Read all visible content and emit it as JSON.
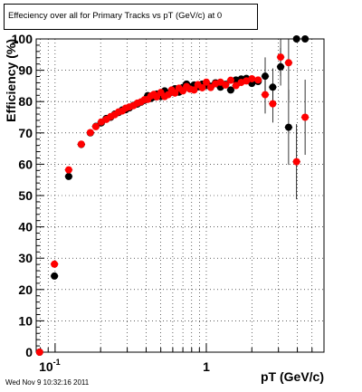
{
  "title": "Effeciency over all for Primary Tracks vs pT (GeV/c) at 0",
  "timestamp": "Wed Nov  9 10:32:16 2011",
  "chart_data": {
    "type": "scatter",
    "title": "Effeciency over all for Primary Tracks vs pT (GeV/c) at 0",
    "xlabel": "pT (GeV/c)",
    "ylabel": "Efficiency (%)",
    "x_scale": "log",
    "xlim": [
      0.075,
      6.0
    ],
    "ylim": [
      0,
      100
    ],
    "x_tick_labels": [
      "10^-1",
      "1"
    ],
    "y_ticks": [
      0,
      10,
      20,
      30,
      40,
      50,
      60,
      70,
      80,
      90,
      100
    ],
    "grid": true,
    "colors": {
      "black_series": "#000000",
      "red_series": "#ff0000"
    },
    "series": [
      {
        "color": "#000000",
        "x": [
          0.079,
          0.099,
          0.123,
          0.149,
          0.171,
          0.186,
          0.202,
          0.218,
          0.233,
          0.248,
          0.263,
          0.278,
          0.293,
          0.31,
          0.33,
          0.35,
          0.37,
          0.39,
          0.41,
          0.43,
          0.45,
          0.47,
          0.5,
          0.53,
          0.56,
          0.59,
          0.62,
          0.66,
          0.7,
          0.74,
          0.78,
          0.83,
          0.88,
          0.94,
          1.0,
          1.07,
          1.15,
          1.24,
          1.34,
          1.45,
          1.57,
          1.7,
          1.84,
          2.0,
          2.2,
          2.45,
          2.75,
          3.1,
          3.5,
          3.95,
          4.5
        ],
        "y": [
          0,
          24.3,
          56.1,
          66.3,
          70.0,
          72.1,
          73.2,
          74.6,
          75.0,
          76.0,
          76.5,
          77.3,
          77.4,
          78.0,
          78.8,
          79.2,
          79.8,
          80.4,
          81.9,
          81.0,
          81.5,
          82.4,
          81.6,
          83.4,
          82.6,
          83.0,
          84.1,
          83.0,
          84.5,
          85.6,
          84.7,
          85.3,
          84.7,
          85.6,
          85.1,
          84.9,
          86.0,
          84.6,
          85.5,
          83.7,
          86.9,
          87.2,
          87.4,
          85.8,
          86.4,
          88.1,
          84.6,
          91.1,
          71.8,
          100,
          100
        ]
      },
      {
        "color": "#ff0000",
        "x": [
          0.079,
          0.099,
          0.123,
          0.149,
          0.171,
          0.186,
          0.202,
          0.218,
          0.233,
          0.248,
          0.263,
          0.278,
          0.293,
          0.31,
          0.33,
          0.35,
          0.37,
          0.39,
          0.41,
          0.43,
          0.45,
          0.47,
          0.5,
          0.53,
          0.56,
          0.59,
          0.62,
          0.66,
          0.7,
          0.74,
          0.78,
          0.83,
          0.88,
          0.94,
          1.0,
          1.07,
          1.15,
          1.24,
          1.34,
          1.45,
          1.57,
          1.7,
          1.84,
          2.0,
          2.2,
          2.45,
          2.75,
          3.1,
          3.5,
          3.95,
          4.5
        ],
        "y": [
          0,
          28.1,
          58.2,
          66.4,
          70.1,
          72.0,
          73.5,
          74.3,
          75.2,
          75.8,
          76.7,
          77.0,
          77.9,
          78.3,
          78.7,
          79.5,
          79.9,
          80.6,
          80.7,
          81.8,
          82.3,
          81.5,
          82.9,
          81.6,
          82.2,
          83.7,
          82.7,
          84.3,
          83.4,
          84.8,
          84.0,
          83.7,
          85.4,
          84.4,
          86.2,
          84.5,
          85.7,
          86.2,
          85.3,
          86.8,
          85.1,
          86.1,
          86.6,
          87.3,
          86.9,
          82.2,
          79.3,
          94.2,
          92.4,
          60.8,
          75.0
        ]
      }
    ]
  }
}
